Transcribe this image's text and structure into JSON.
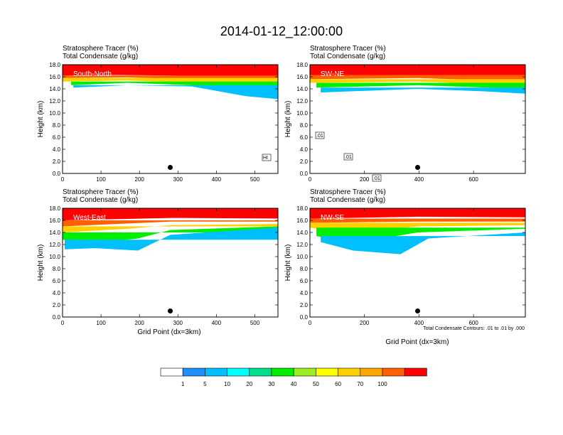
{
  "title": "2014-01-12_12:00:00",
  "field_labels": {
    "shaded": "Stratosphere Tracer   (%)",
    "contour": "Total Condensate   (g/kg)"
  },
  "ylabel": "Height (km)",
  "xlabel": "Grid Point (dx=3km)",
  "contour_note": "Total Condensate Contours: .01 to .01 by .000",
  "colorbar": {
    "labels": [
      "1",
      "5",
      "10",
      "20",
      "30",
      "40",
      "50",
      "60",
      "70",
      "100"
    ],
    "colors": [
      "#ffffff",
      "#1e90ff",
      "#00bfff",
      "#00ffff",
      "#00e08a",
      "#00ee00",
      "#9aee22",
      "#ffff00",
      "#ffd000",
      "#ffa500",
      "#ff6000",
      "#ff0000"
    ]
  },
  "chart_data": [
    {
      "type": "heatmap",
      "panel_label": "South-North",
      "xlim": [
        0,
        560
      ],
      "xticks": [
        0,
        100,
        200,
        300,
        400,
        500
      ],
      "ylim": [
        0,
        18
      ],
      "yticks": [
        0.0,
        2.0,
        4.0,
        6.0,
        8.0,
        10.0,
        12.0,
        14.0,
        16.0,
        18.0
      ],
      "marker_x": 280,
      "contour_labels": [
        "HI"
      ]
    },
    {
      "type": "heatmap",
      "panel_label": "SW-NE",
      "xlim": [
        0,
        790
      ],
      "xticks": [
        0,
        200,
        400,
        600
      ],
      "ylim": [
        0,
        18
      ],
      "yticks": [
        0.0,
        2.0,
        4.0,
        6.0,
        8.0,
        10.0,
        12.0,
        14.0,
        16.0,
        18.0
      ],
      "marker_x": 395,
      "contour_labels": [
        ".01",
        ".01",
        ".01"
      ]
    },
    {
      "type": "heatmap",
      "panel_label": "West-East",
      "xlim": [
        0,
        560
      ],
      "xticks": [
        0,
        100,
        200,
        300,
        400,
        500
      ],
      "ylim": [
        0,
        18
      ],
      "yticks": [
        0.0,
        2.0,
        4.0,
        6.0,
        8.0,
        10.0,
        12.0,
        14.0,
        16.0,
        18.0
      ],
      "marker_x": 280,
      "contour_labels": []
    },
    {
      "type": "heatmap",
      "panel_label": "NW-SE",
      "xlim": [
        0,
        790
      ],
      "xticks": [
        0,
        200,
        400,
        600
      ],
      "ylim": [
        0,
        18
      ],
      "yticks": [
        0.0,
        2.0,
        4.0,
        6.0,
        8.0,
        10.0,
        12.0,
        14.0,
        16.0,
        18.0
      ],
      "marker_x": 395,
      "contour_labels": []
    }
  ]
}
